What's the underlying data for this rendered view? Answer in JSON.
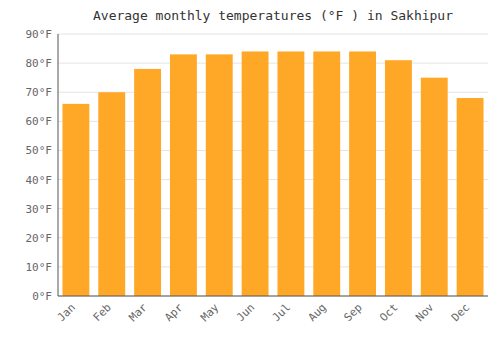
{
  "chart_data": {
    "type": "bar",
    "title": "Average monthly temperatures (°F ) in Sakhipur",
    "categories": [
      "Jan",
      "Feb",
      "Mar",
      "Apr",
      "May",
      "Jun",
      "Jul",
      "Aug",
      "Sep",
      "Oct",
      "Nov",
      "Dec"
    ],
    "values": [
      66,
      70,
      78,
      83,
      83,
      84,
      84,
      84,
      84,
      81,
      75,
      68
    ],
    "color": "#FFA726",
    "ylim": [
      0,
      90
    ],
    "yticks": [
      {
        "value": 0,
        "label": "0°F"
      },
      {
        "value": 10,
        "label": "10°F"
      },
      {
        "value": 20,
        "label": "20°F"
      },
      {
        "value": 30,
        "label": "30°F"
      },
      {
        "value": 40,
        "label": "40°F"
      },
      {
        "value": 50,
        "label": "50°F"
      },
      {
        "value": 60,
        "label": "60°F"
      },
      {
        "value": 70,
        "label": "70°F"
      },
      {
        "value": 80,
        "label": "80°F"
      },
      {
        "value": 90,
        "label": "90°F"
      }
    ],
    "grid": true
  }
}
